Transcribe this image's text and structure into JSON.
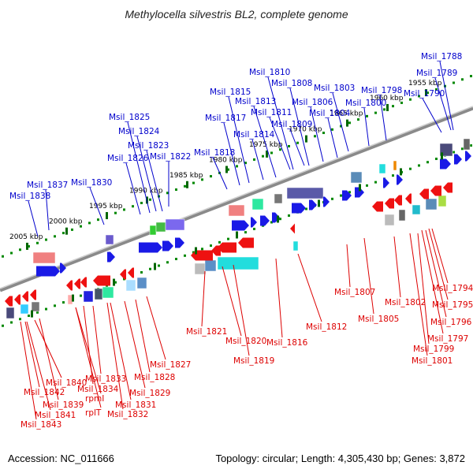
{
  "title": "Methylocella silvestris BL2, complete genome",
  "footer": {
    "accession": "Accession: NC_011666",
    "summary": "Topology: circular; Length: 4,305,430 bp; Genes: 3,872"
  },
  "colors": {
    "top_label": "#0000cc",
    "bottom_label": "#dd0000",
    "scale_dots": "#008800",
    "backbone": "#8a8a8a"
  },
  "scale_ticks": [
    "1955 kbp",
    "1960 kbp",
    "1965 kbp",
    "1970 kbp",
    "1975 kbp",
    "1980 kbp",
    "1985 kbp",
    "1990 kbp",
    "1995 kbp",
    "2000 kbp",
    "2005 kbp"
  ],
  "top_labels": [
    "Msil_1788",
    "Msil_1789",
    "Msil_1790",
    "Msil_1798",
    "Msil_1800",
    "Msil_1803",
    "Msil_1804",
    "Msil_1806",
    "Msil_1808",
    "Msil_1809",
    "Msil_1810",
    "Msil_1811",
    "Msil_1813",
    "Msil_1814",
    "Msil_1815",
    "Msil_1817",
    "Msil_1818",
    "Msil_1822",
    "Msil_1823",
    "Msil_1824",
    "Msil_1825",
    "Msil_1826",
    "Msil_1830",
    "Msil_1837",
    "Msil_1838"
  ],
  "bottom_labels": [
    "Msil_1794",
    "Msil_1795",
    "Msil_1796",
    "Msil_1797",
    "Msil_1799",
    "Msil_1801",
    "Msil_1802",
    "Msil_1805",
    "Msil_1807",
    "Msil_1812",
    "Msil_1816",
    "Msil_1819",
    "Msil_1820",
    "Msil_1821",
    "Msil_1827",
    "Msil_1828",
    "Msil_1829",
    "Msil_1831",
    "Msil_1832",
    "Msil_1833",
    "Msil_1834",
    "rpmI",
    "rplT",
    "Msil_1839",
    "Msil_1840",
    "Msil_1841",
    "Msil_1842",
    "Msil_1843"
  ]
}
